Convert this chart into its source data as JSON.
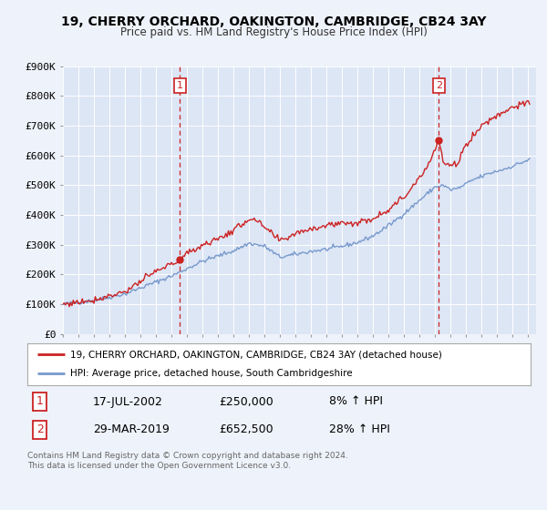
{
  "title": "19, CHERRY ORCHARD, OAKINGTON, CAMBRIDGE, CB24 3AY",
  "subtitle": "Price paid vs. HM Land Registry's House Price Index (HPI)",
  "background_color": "#eef2fa",
  "plot_background": "#dde6f5",
  "grid_color": "#ffffff",
  "legend_label_red": "19, CHERRY ORCHARD, OAKINGTON, CAMBRIDGE, CB24 3AY (detached house)",
  "legend_label_blue": "HPI: Average price, detached house, South Cambridgeshire",
  "sale1_date_str": "17-JUL-2002",
  "sale1_price_str": "£250,000",
  "sale1_hpi_str": "8% ↑ HPI",
  "sale2_date_str": "29-MAR-2019",
  "sale2_price_str": "£652,500",
  "sale2_hpi_str": "28% ↑ HPI",
  "footer": "Contains HM Land Registry data © Crown copyright and database right 2024.\nThis data is licensed under the Open Government Licence v3.0.",
  "ylim": [
    0,
    900000
  ],
  "yticks": [
    0,
    100000,
    200000,
    300000,
    400000,
    500000,
    600000,
    700000,
    800000,
    900000
  ],
  "ytick_labels": [
    "£0",
    "£100K",
    "£200K",
    "£300K",
    "£400K",
    "£500K",
    "£600K",
    "£700K",
    "£800K",
    "£900K"
  ],
  "sale1_year": 2002.54,
  "sale1_value": 250000,
  "sale2_year": 2019.24,
  "sale2_value": 652500,
  "red_line_color": "#cc2222",
  "blue_line_color": "#7799cc",
  "vline_color": "#cc2222",
  "marker_color": "#cc2222",
  "box_edge_color": "#cc2222"
}
